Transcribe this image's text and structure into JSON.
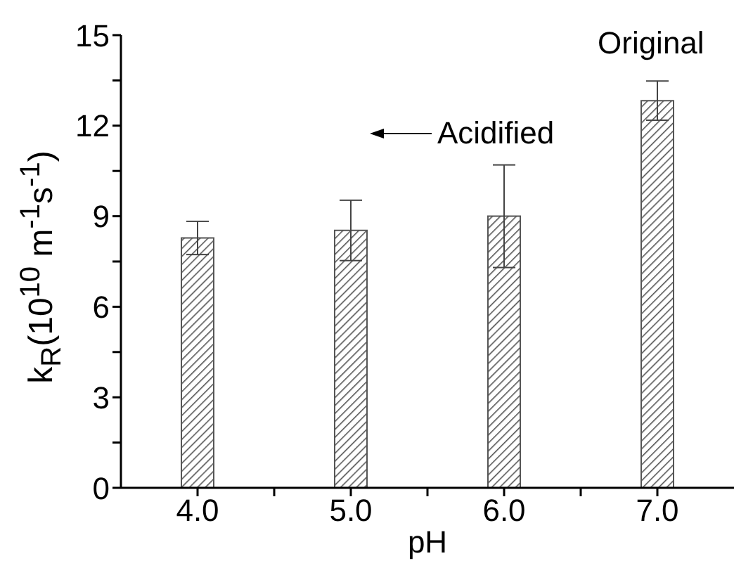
{
  "chart_data": {
    "type": "bar",
    "xlabel": "pH",
    "ylabel": "k$_{R}$(10$^{10}$ m$^{-1}$s$^{-1}$)",
    "x": [
      4,
      5,
      6,
      7
    ],
    "values": [
      8.28,
      8.53,
      9.0,
      12.83
    ],
    "errors": [
      0.55,
      1.0,
      1.7,
      0.65
    ],
    "color": "#555555",
    "xlim": [
      3.5,
      7.5
    ],
    "xticks": [
      {
        "value": 4,
        "label": "4.0"
      },
      {
        "value": 4.5,
        "label": null
      },
      {
        "value": 5,
        "label": "5.0"
      },
      {
        "value": 5.5,
        "label": null
      },
      {
        "value": 6,
        "label": "6.0"
      },
      {
        "value": 6.5,
        "label": null
      },
      {
        "value": 7,
        "label": "7.0"
      }
    ],
    "ylim": [
      0,
      15
    ],
    "yticks": [
      0,
      {
        "value": 1.5,
        "label": null
      },
      3,
      {
        "value": 4.5,
        "label": null
      },
      6,
      {
        "value": 7.5,
        "label": null
      },
      9,
      {
        "value": 10.5,
        "label": null
      },
      12,
      {
        "value": 13.5,
        "label": null
      },
      15
    ],
    "annotations": [
      "Original",
      "Acidified"
    ],
    "grid": false
  }
}
